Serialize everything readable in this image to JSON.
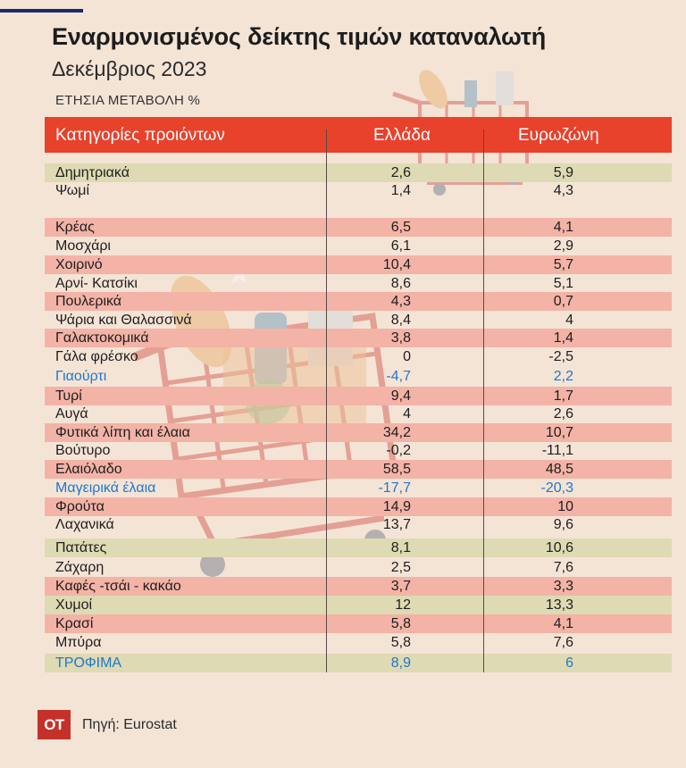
{
  "header": {
    "title": "Εναρμονισμένος δείκτης τιμών καταναλωτή",
    "subtitle": "Δεκέμβριος 2023",
    "unit_label": "ΕΤΗΣΙΑ ΜΕΤΑΒΟΛΗ %"
  },
  "table": {
    "col_category": "Κατηγορίες προιόντων",
    "col_greece": "Ελλάδα",
    "col_eurozone": "Ευρωζώνη"
  },
  "chart_data": {
    "type": "table",
    "title": "Εναρμονισμένος δείκτης τιμών καταναλωτή",
    "subtitle": "Δεκέμβριος 2023",
    "unit": "ΕΤΗΣΙΑ ΜΕΤΑΒΟΛΗ %",
    "columns": [
      "Κατηγορίες προιόντων",
      "Ελλάδα",
      "Ευρωζώνη"
    ],
    "rows": [
      {
        "label": "Δημητριακά",
        "greece": "2,6",
        "eurozone": "5,9",
        "shade": "g"
      },
      {
        "label": "Ψωμί",
        "greece": "1,4",
        "eurozone": "4,3",
        "shade": "n"
      },
      {
        "label": "Κρέας",
        "greece": "6,5",
        "eurozone": "4,1",
        "shade": "r"
      },
      {
        "label": "Μοσχάρι",
        "greece": "6,1",
        "eurozone": "2,9",
        "shade": "n"
      },
      {
        "label": "Χοιρινό",
        "greece": "10,4",
        "eurozone": "5,7",
        "shade": "r"
      },
      {
        "label": "Αρνί- Κατσίκι",
        "greece": "8,6",
        "eurozone": "5,1",
        "shade": "n"
      },
      {
        "label": "Πουλερικά",
        "greece": "4,3",
        "eurozone": "0,7",
        "shade": "r"
      },
      {
        "label": "Ψάρια και Θαλασσινά",
        "greece": "8,4",
        "eurozone": "4",
        "shade": "n"
      },
      {
        "label": "Γαλακτοκομικά",
        "greece": "3,8",
        "eurozone": "1,4",
        "shade": "r"
      },
      {
        "label": "Γάλα φρέσκο",
        "greece": "0",
        "eurozone": "-2,5",
        "shade": "n"
      },
      {
        "label": "Γιαούρτι",
        "greece": "-4,7",
        "eurozone": "2,2",
        "shade": "n",
        "highlight": true
      },
      {
        "label": "Τυρί",
        "greece": "9,4",
        "eurozone": "1,7",
        "shade": "r"
      },
      {
        "label": "Αυγά",
        "greece": "4",
        "eurozone": "2,6",
        "shade": "n"
      },
      {
        "label": "Φυτικά λίπη και έλαια",
        "greece": "34,2",
        "eurozone": "10,7",
        "shade": "r"
      },
      {
        "label": "Βούτυρο",
        "greece": "-0,2",
        "eurozone": "-11,1",
        "shade": "n"
      },
      {
        "label": "Ελαιόλαδο",
        "greece": "58,5",
        "eurozone": "48,5",
        "shade": "r"
      },
      {
        "label": "Μαγειρικά έλαια",
        "greece": "-17,7",
        "eurozone": "-20,3",
        "shade": "n",
        "highlight": true
      },
      {
        "label": "Φρούτα",
        "greece": "14,9",
        "eurozone": "10",
        "shade": "r"
      },
      {
        "label": "Λαχανικά",
        "greece": "13,7",
        "eurozone": "9,6",
        "shade": "n"
      },
      {
        "label": "Πατάτες",
        "greece": "8,1",
        "eurozone": "10,6",
        "shade": "g"
      },
      {
        "label": "Ζάχαρη",
        "greece": "2,5",
        "eurozone": "7,6",
        "shade": "n"
      },
      {
        "label": "Καφές -τσάι - κακάο",
        "greece": "3,7",
        "eurozone": "3,3",
        "shade": "r"
      },
      {
        "label": "Χυμοί",
        "greece": "12",
        "eurozone": "13,3",
        "shade": "g"
      },
      {
        "label": "Κρασί",
        "greece": "5,8",
        "eurozone": "4,1",
        "shade": "r"
      },
      {
        "label": "Μπύρα",
        "greece": "5,8",
        "eurozone": "7,6",
        "shade": "n"
      },
      {
        "label": "ΤΡΟΦΙΜΑ",
        "greece": "8,9",
        "eurozone": "6",
        "shade": "g",
        "highlight": true
      }
    ]
  },
  "footer": {
    "logo_text": "OT",
    "source": "Πηγή: Eurostat"
  },
  "colors": {
    "header_red": "#e8412c",
    "row_green": "#dedab3",
    "row_red": "#f3b3a6",
    "highlight_blue": "#2177c9",
    "background": "#f4e4d6"
  }
}
